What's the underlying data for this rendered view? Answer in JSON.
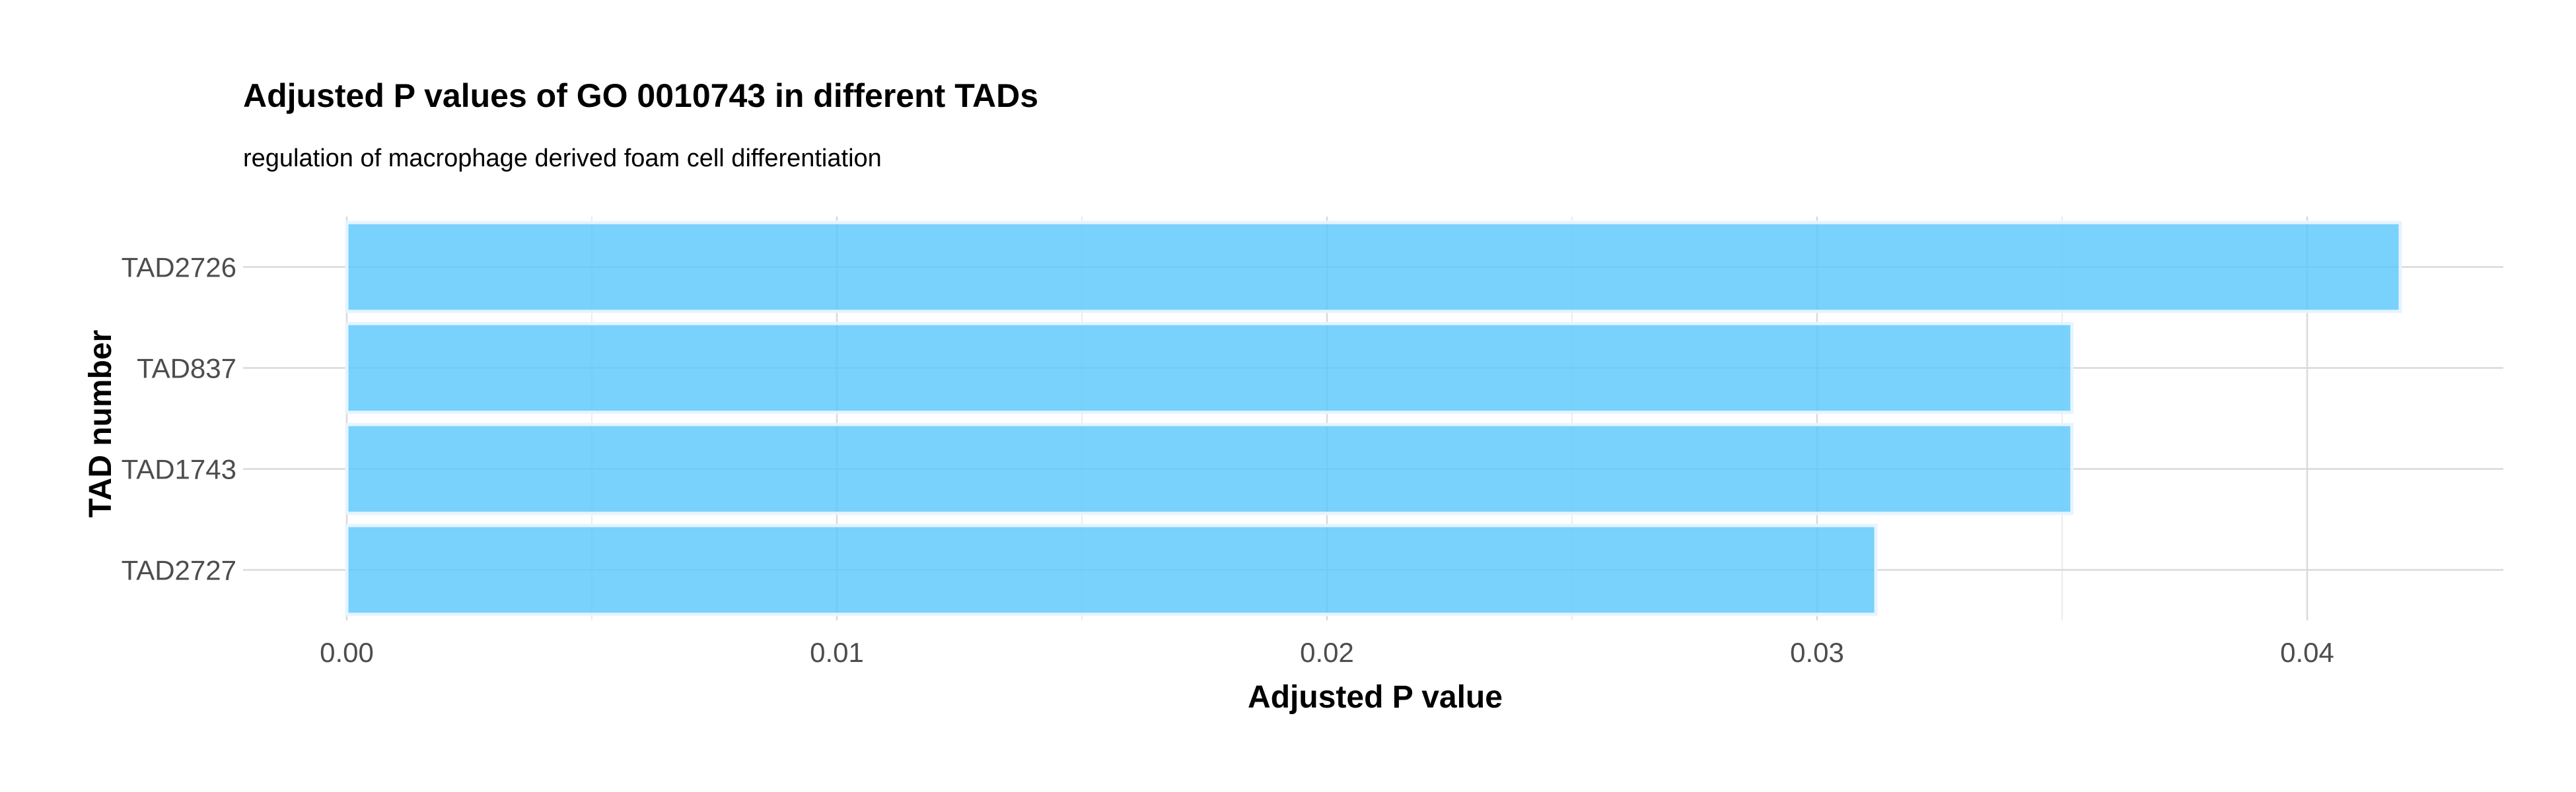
{
  "chart_data": {
    "type": "bar",
    "orientation": "horizontal",
    "title": "Adjusted P values of GO 0010743 in different TADs",
    "subtitle": "regulation of macrophage derived foam cell differentiation",
    "xlabel": "Adjusted P value",
    "ylabel": "TAD number",
    "categories": [
      "TAD2726",
      "TAD837",
      "TAD1743",
      "TAD2727"
    ],
    "values": [
      0.0419,
      0.0352,
      0.0352,
      0.0312
    ],
    "xlim": [
      0,
      0.044
    ],
    "xticks": [
      0.0,
      0.01,
      0.02,
      0.03,
      0.04
    ],
    "xtick_labels": [
      "0.00",
      "0.01",
      "0.02",
      "0.03",
      "0.04"
    ],
    "grid": true,
    "legend": "none",
    "bar_color": "#5ac8fa"
  }
}
